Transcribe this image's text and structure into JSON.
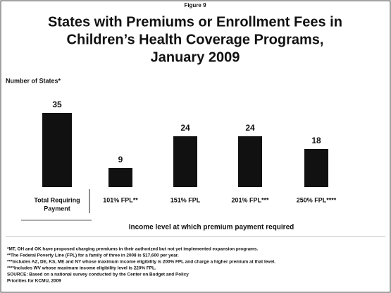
{
  "chart_data": {
    "type": "bar",
    "figure_label": "Figure 9",
    "title": [
      "States with Premiums or Enrollment Fees in",
      "Children’s Health Coverage Programs,",
      "January 2009"
    ],
    "y_label": "Number of States*",
    "x_label": "Income level at which premium payment required",
    "categories": [
      [
        "Total Requiring",
        "Payment"
      ],
      [
        "101% FPL**"
      ],
      [
        "151% FPL"
      ],
      [
        "201% FPL***"
      ],
      [
        "250% FPL****"
      ]
    ],
    "values": [
      35,
      9,
      24,
      24,
      18
    ],
    "color": "#111111",
    "notes": [
      "*MT, OH and OK have proposed charging premiums in their authorized but not yet implemented expansion programs.",
      "**The Federal Poverty Line (FPL) for a family of three in 2008 is $17,600 per year.",
      "***Includes AZ, DE, KS, ME and NY whose maximum income eligibility is 200% FPL and charge a higher premium at that level.",
      "****Includes WV whose maximum income eligibility level is 220% FPL.",
      "SOURCE: Based on a national survey conducted by the Center on Budget and Policy",
      "Priorities for KCMU, 2009"
    ]
  }
}
